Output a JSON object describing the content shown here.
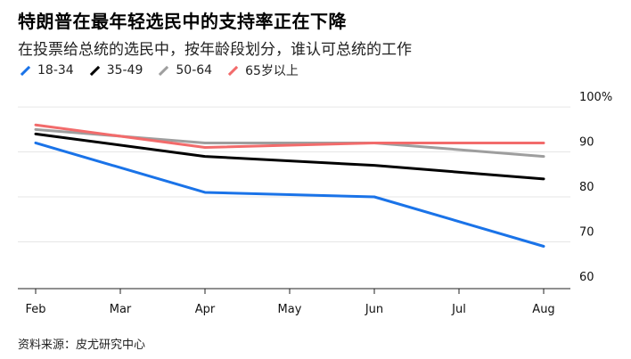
{
  "title": "特朗普在最年轻选民中的支持率正在下降",
  "subtitle": "在投票给总统的选民中，按年龄段划分，谁认可总统的工作",
  "source": "资料来源：皮尤研究中心",
  "chart_data": {
    "type": "line",
    "x": [
      "Feb",
      "Mar",
      "Apr",
      "May",
      "Jun",
      "Jul",
      "Aug"
    ],
    "y_ticks": [
      "100%",
      "90",
      "80",
      "70",
      "60"
    ],
    "ylim": [
      58,
      102
    ],
    "grid": true,
    "legend_position": "top-left",
    "series": [
      {
        "name": "18-34",
        "color": "#1a73e8",
        "points": [
          [
            "Feb",
            92
          ],
          [
            "Apr",
            81
          ],
          [
            "Jun",
            80
          ],
          [
            "Aug",
            69
          ]
        ]
      },
      {
        "name": "35-49",
        "color": "#000000",
        "points": [
          [
            "Feb",
            94
          ],
          [
            "Apr",
            89
          ],
          [
            "Jun",
            87
          ],
          [
            "Aug",
            84
          ]
        ]
      },
      {
        "name": "50-64",
        "color": "#9e9e9e",
        "points": [
          [
            "Feb",
            95
          ],
          [
            "Apr",
            92
          ],
          [
            "Jun",
            92
          ],
          [
            "Aug",
            89
          ]
        ]
      },
      {
        "name": "65岁以上",
        "color": "#f26b6b",
        "points": [
          [
            "Feb",
            96
          ],
          [
            "Apr",
            91
          ],
          [
            "Jun",
            92
          ],
          [
            "Aug",
            92
          ]
        ]
      }
    ]
  }
}
